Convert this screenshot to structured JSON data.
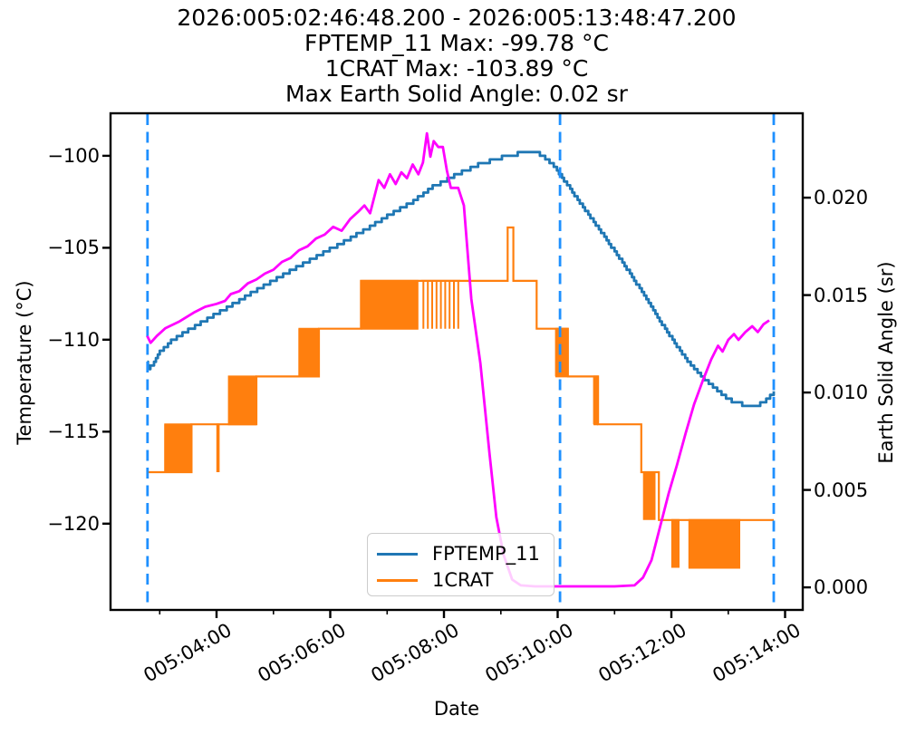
{
  "figure": {
    "title_lines": [
      "2026:005:02:46:48.200 - 2026:005:13:48:47.200",
      "FPTEMP_11 Max: -99.78 °C",
      "1CRAT Max: -103.89 °C",
      "Max Earth Solid Angle: 0.02 sr"
    ],
    "xlabel": "Date",
    "ylabel_left": "Temperature (°C)",
    "ylabel_right": "Earth Solid Angle (sr)"
  },
  "chart_data": {
    "type": "line",
    "x_unit": "hours of day 2026:005",
    "xlim": [
      2.135,
      14.31
    ],
    "x_major_ticks": [
      {
        "t": 4,
        "label": "005:04:00"
      },
      {
        "t": 6,
        "label": "005:06:00"
      },
      {
        "t": 8,
        "label": "005:08:00"
      },
      {
        "t": 10,
        "label": "005:10:00"
      },
      {
        "t": 12,
        "label": "005:12:00"
      },
      {
        "t": 14,
        "label": "005:14:00"
      }
    ],
    "x_minor_ticks": [
      3,
      5,
      7,
      9,
      11,
      13
    ],
    "left_axis": {
      "label": "Temperature (°C)",
      "lim": [
        -124.69,
        -97.69
      ],
      "ticks": [
        -100,
        -105,
        -110,
        -115,
        -120
      ],
      "tick_labels": [
        "−100",
        "−105",
        "−110",
        "−115",
        "−120"
      ]
    },
    "right_axis": {
      "label": "Earth Solid Angle (sr)",
      "lim": [
        -0.00116,
        0.02433
      ],
      "ticks": [
        0.02,
        0.015,
        0.01,
        0.005,
        0.0
      ],
      "tick_labels": [
        "0.020",
        "0.015",
        "0.010",
        "0.005",
        "0.000"
      ]
    },
    "vlines": {
      "color": "#1e90ff",
      "times": [
        2.785,
        10.04,
        13.8
      ]
    },
    "series": [
      {
        "name": "FPTEMP_11",
        "color": "#1f77b4",
        "axis": "left",
        "style": "quantized",
        "quantize_step": 0.2,
        "points": [
          [
            2.78,
            -111.25
          ],
          [
            2.82,
            -111.55
          ],
          [
            2.9,
            -111.3
          ],
          [
            3.0,
            -110.7
          ],
          [
            3.2,
            -110.1
          ],
          [
            3.5,
            -109.5
          ],
          [
            3.8,
            -108.95
          ],
          [
            4.0,
            -108.6
          ],
          [
            4.3,
            -108.05
          ],
          [
            4.6,
            -107.5
          ],
          [
            5.0,
            -106.8
          ],
          [
            5.4,
            -106.1
          ],
          [
            5.8,
            -105.4
          ],
          [
            6.2,
            -104.75
          ],
          [
            6.6,
            -104.05
          ],
          [
            7.0,
            -103.3
          ],
          [
            7.4,
            -102.6
          ],
          [
            7.8,
            -101.7
          ],
          [
            8.2,
            -101.05
          ],
          [
            8.6,
            -100.5
          ],
          [
            8.9,
            -100.2
          ],
          [
            9.2,
            -99.95
          ],
          [
            9.45,
            -99.8
          ],
          [
            9.65,
            -99.85
          ],
          [
            9.8,
            -100.15
          ],
          [
            9.95,
            -100.6
          ],
          [
            10.04,
            -101.0
          ],
          [
            10.2,
            -101.7
          ],
          [
            10.5,
            -103.0
          ],
          [
            10.8,
            -104.3
          ],
          [
            11.1,
            -105.6
          ],
          [
            11.4,
            -107.0
          ],
          [
            11.7,
            -108.5
          ],
          [
            12.0,
            -109.9
          ],
          [
            12.3,
            -111.2
          ],
          [
            12.6,
            -112.2
          ],
          [
            12.9,
            -113.0
          ],
          [
            13.1,
            -113.4
          ],
          [
            13.3,
            -113.55
          ],
          [
            13.45,
            -113.6
          ],
          [
            13.6,
            -113.45
          ],
          [
            13.72,
            -113.15
          ],
          [
            13.8,
            -112.9
          ]
        ]
      },
      {
        "name": "1CRAT",
        "color": "#ff7f0e",
        "axis": "left",
        "style": "steps",
        "steps": [
          [
            2.78,
            3.56,
            -117.2
          ],
          [
            3.56,
            4.7,
            -114.6
          ],
          [
            4.7,
            5.8,
            -112.0
          ],
          [
            5.8,
            6.54,
            -109.4
          ],
          [
            6.54,
            9.12,
            -106.8
          ],
          [
            9.12,
            9.22,
            -103.9
          ],
          [
            9.22,
            9.63,
            -106.8
          ],
          [
            9.63,
            10.18,
            -109.4
          ],
          [
            10.18,
            10.71,
            -112.0
          ],
          [
            10.71,
            11.47,
            -114.6
          ],
          [
            11.47,
            11.78,
            -117.2
          ],
          [
            11.78,
            13.8,
            -119.8
          ]
        ],
        "bursts": [
          [
            3.08,
            3.56,
            -117.2,
            -114.6,
            16,
            "both"
          ],
          [
            4.0,
            4.05,
            -117.2,
            -114.6,
            2,
            "hi"
          ],
          [
            4.2,
            4.7,
            -114.6,
            -112.0,
            16,
            "both"
          ],
          [
            5.44,
            5.8,
            -112.0,
            -109.4,
            12,
            "both"
          ],
          [
            6.54,
            7.55,
            -109.4,
            -106.8,
            32,
            "both"
          ],
          [
            7.6,
            8.29,
            -109.4,
            -106.8,
            9,
            "hi"
          ],
          [
            9.96,
            10.18,
            -112.0,
            -109.4,
            12,
            "both"
          ],
          [
            10.63,
            10.71,
            -114.6,
            -112.0,
            5,
            "both"
          ],
          [
            11.5,
            11.72,
            -119.8,
            -117.2,
            7,
            "hi"
          ],
          [
            12.0,
            12.14,
            -122.4,
            -119.8,
            5,
            "hi"
          ],
          [
            12.3,
            13.21,
            -122.4,
            -119.8,
            30,
            "both"
          ]
        ]
      },
      {
        "name": "Earth Solid Angle",
        "color": "#ff00ff",
        "axis": "right",
        "style": "line",
        "points": [
          [
            2.78,
            0.0129
          ],
          [
            2.84,
            0.01255
          ],
          [
            2.95,
            0.0129
          ],
          [
            3.1,
            0.0133
          ],
          [
            3.35,
            0.01365
          ],
          [
            3.6,
            0.0141
          ],
          [
            3.8,
            0.0144
          ],
          [
            4.0,
            0.01455
          ],
          [
            4.15,
            0.0147
          ],
          [
            4.25,
            0.01505
          ],
          [
            4.4,
            0.0152
          ],
          [
            4.55,
            0.0156
          ],
          [
            4.7,
            0.0158
          ],
          [
            4.85,
            0.0161
          ],
          [
            5.0,
            0.0163
          ],
          [
            5.15,
            0.0167
          ],
          [
            5.3,
            0.0169
          ],
          [
            5.45,
            0.0173
          ],
          [
            5.6,
            0.0175
          ],
          [
            5.75,
            0.0179
          ],
          [
            5.9,
            0.0181
          ],
          [
            6.05,
            0.0185
          ],
          [
            6.2,
            0.0183
          ],
          [
            6.35,
            0.0189
          ],
          [
            6.5,
            0.0193
          ],
          [
            6.6,
            0.0196
          ],
          [
            6.7,
            0.0192
          ],
          [
            6.85,
            0.0209
          ],
          [
            6.95,
            0.0205
          ],
          [
            7.05,
            0.0212
          ],
          [
            7.15,
            0.0207
          ],
          [
            7.25,
            0.0213
          ],
          [
            7.35,
            0.021
          ],
          [
            7.45,
            0.0217
          ],
          [
            7.55,
            0.0212
          ],
          [
            7.63,
            0.0218
          ],
          [
            7.7,
            0.0233
          ],
          [
            7.76,
            0.0221
          ],
          [
            7.82,
            0.0229
          ],
          [
            7.9,
            0.0226
          ],
          [
            7.98,
            0.0226
          ],
          [
            8.05,
            0.0214
          ],
          [
            8.12,
            0.0205
          ],
          [
            8.25,
            0.0205
          ],
          [
            8.35,
            0.0196
          ],
          [
            8.48,
            0.0148
          ],
          [
            8.64,
            0.0115
          ],
          [
            8.8,
            0.0069
          ],
          [
            8.92,
            0.0036
          ],
          [
            9.05,
            0.00165
          ],
          [
            9.2,
            0.0004
          ],
          [
            9.35,
            0.0001
          ],
          [
            9.6,
            5e-05
          ],
          [
            10.5,
            5e-05
          ],
          [
            11.0,
            5e-05
          ],
          [
            11.35,
            0.0001
          ],
          [
            11.5,
            0.0005
          ],
          [
            11.65,
            0.0014
          ],
          [
            11.8,
            0.0031
          ],
          [
            11.95,
            0.0048
          ],
          [
            12.1,
            0.0063
          ],
          [
            12.25,
            0.0079
          ],
          [
            12.4,
            0.0094
          ],
          [
            12.55,
            0.0106
          ],
          [
            12.7,
            0.0117
          ],
          [
            12.82,
            0.0124
          ],
          [
            12.9,
            0.0121
          ],
          [
            13.0,
            0.0127
          ],
          [
            13.1,
            0.013
          ],
          [
            13.18,
            0.0127
          ],
          [
            13.3,
            0.0131
          ],
          [
            13.42,
            0.0134
          ],
          [
            13.52,
            0.0131
          ],
          [
            13.62,
            0.0135
          ],
          [
            13.72,
            0.0137
          ]
        ]
      }
    ],
    "legend": {
      "entries": [
        "FPTEMP_11",
        "1CRAT"
      ],
      "position": "lower center-left"
    },
    "grid": false
  },
  "colors": {
    "fptemp_11": "#1f77b4",
    "1crat": "#ff7f0e",
    "earth_solid_angle": "#ff00ff",
    "event_vline": "#1e90ff",
    "axes": "#000000",
    "background": "#ffffff"
  }
}
